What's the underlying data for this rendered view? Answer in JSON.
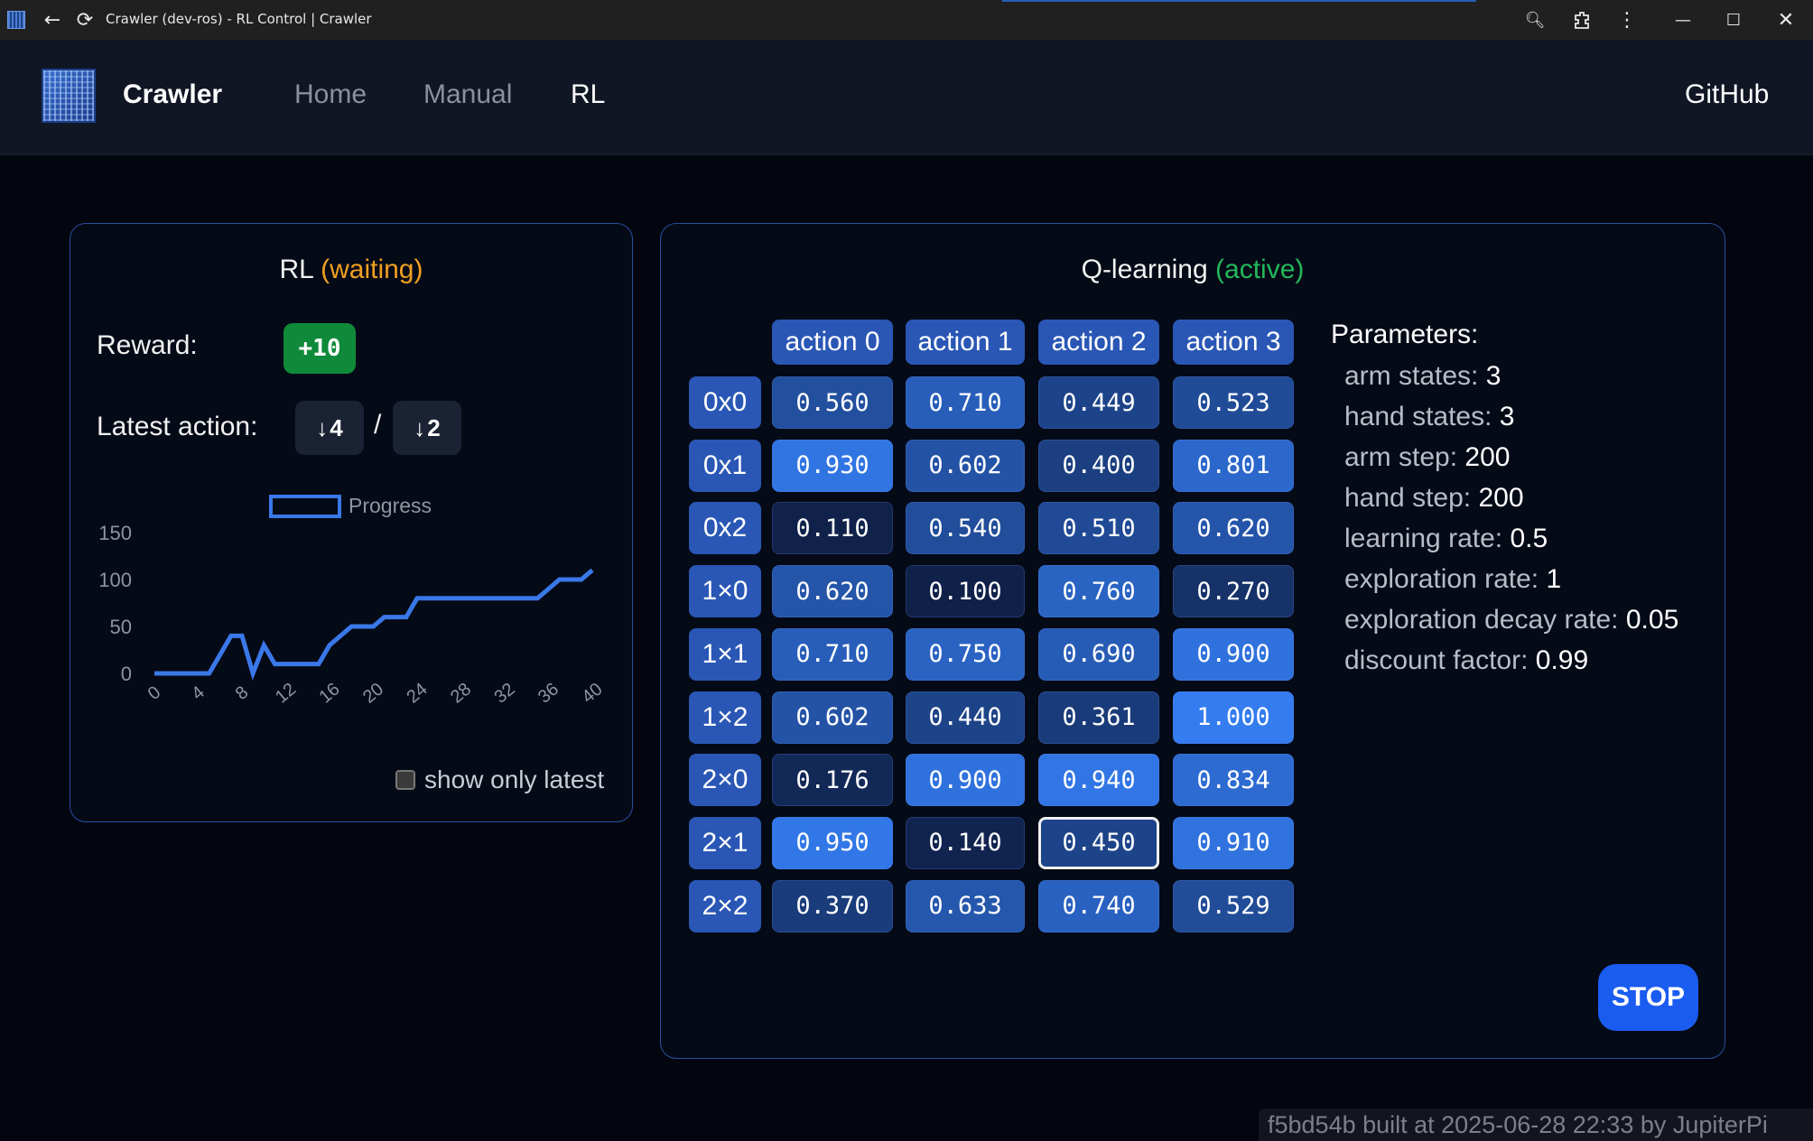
{
  "window": {
    "title": "Crawler (dev-ros) - RL Control | Crawler"
  },
  "nav": {
    "brand": "Crawler",
    "links": [
      "Home",
      "Manual",
      "RL"
    ],
    "active": "RL",
    "github": "GitHub"
  },
  "rl_panel": {
    "title": "RL",
    "status": "(waiting)",
    "reward_label": "Reward:",
    "reward_value": "+10",
    "latest_action_label": "Latest action:",
    "action_a": "4",
    "action_b": "2",
    "action_arrow": "↓",
    "separator": "/",
    "show_only_latest_label": "show only latest",
    "show_only_latest_checked": false
  },
  "chart_data": {
    "type": "line",
    "series": [
      {
        "name": "Progress",
        "color": "#3a78e8",
        "x": [
          0,
          1,
          2,
          3,
          4,
          5,
          6,
          7,
          8,
          9,
          10,
          11,
          12,
          13,
          14,
          15,
          16,
          17,
          18,
          19,
          20,
          21,
          22,
          23,
          24,
          25,
          26,
          27,
          28,
          29,
          30,
          31,
          32,
          33,
          34,
          35,
          36,
          37,
          38,
          39,
          40
        ],
        "values": [
          0,
          0,
          0,
          0,
          0,
          0,
          20,
          40,
          40,
          0,
          30,
          10,
          10,
          10,
          10,
          10,
          30,
          40,
          50,
          50,
          50,
          60,
          60,
          60,
          80,
          80,
          80,
          80,
          80,
          80,
          80,
          80,
          80,
          80,
          80,
          80,
          90,
          100,
          100,
          100,
          110
        ]
      }
    ],
    "x_ticks": [
      "0",
      "4",
      "8",
      "12",
      "16",
      "20",
      "24",
      "28",
      "32",
      "36",
      "40"
    ],
    "y_ticks": [
      "0",
      "50",
      "100",
      "150"
    ],
    "ylim": [
      0,
      150
    ],
    "xlim": [
      0,
      40
    ],
    "legend_position": "top-center",
    "grid": false
  },
  "q_panel": {
    "title": "Q-learning",
    "status": "(active)",
    "columns": [
      "action 0",
      "action 1",
      "action 2",
      "action 3"
    ],
    "rows": [
      "0x0",
      "0x1",
      "0x2",
      "1×0",
      "1×1",
      "1×2",
      "2×0",
      "2×1",
      "2×2"
    ],
    "values": [
      [
        "0.560",
        "0.710",
        "0.449",
        "0.523"
      ],
      [
        "0.930",
        "0.602",
        "0.400",
        "0.801"
      ],
      [
        "0.110",
        "0.540",
        "0.510",
        "0.620"
      ],
      [
        "0.620",
        "0.100",
        "0.760",
        "0.270"
      ],
      [
        "0.710",
        "0.750",
        "0.690",
        "0.900"
      ],
      [
        "0.602",
        "0.440",
        "0.361",
        "1.000"
      ],
      [
        "0.176",
        "0.900",
        "0.940",
        "0.834"
      ],
      [
        "0.950",
        "0.140",
        "0.450",
        "0.910"
      ],
      [
        "0.370",
        "0.633",
        "0.740",
        "0.529"
      ]
    ],
    "selected_cell": {
      "row": 7,
      "col": 2
    },
    "parameters_title": "Parameters:",
    "parameters": [
      {
        "label": "arm states:",
        "value": "3"
      },
      {
        "label": "hand states:",
        "value": "3"
      },
      {
        "label": "arm step:",
        "value": "200"
      },
      {
        "label": "hand step:",
        "value": "200"
      },
      {
        "label": "learning rate:",
        "value": "0.5"
      },
      {
        "label": "exploration rate:",
        "value": "1"
      },
      {
        "label": "exploration decay rate:",
        "value": "0.05"
      },
      {
        "label": "discount factor:",
        "value": "0.99"
      }
    ],
    "stop_label": "STOP"
  },
  "footer": {
    "text": "f5bd54b built at 2025-06-28 22:33 by JupiterPi"
  },
  "colors": {
    "accent": "#1a5cf0",
    "waiting": "#f0a020",
    "active": "#22b85a",
    "reward": "#0f8a3a"
  }
}
